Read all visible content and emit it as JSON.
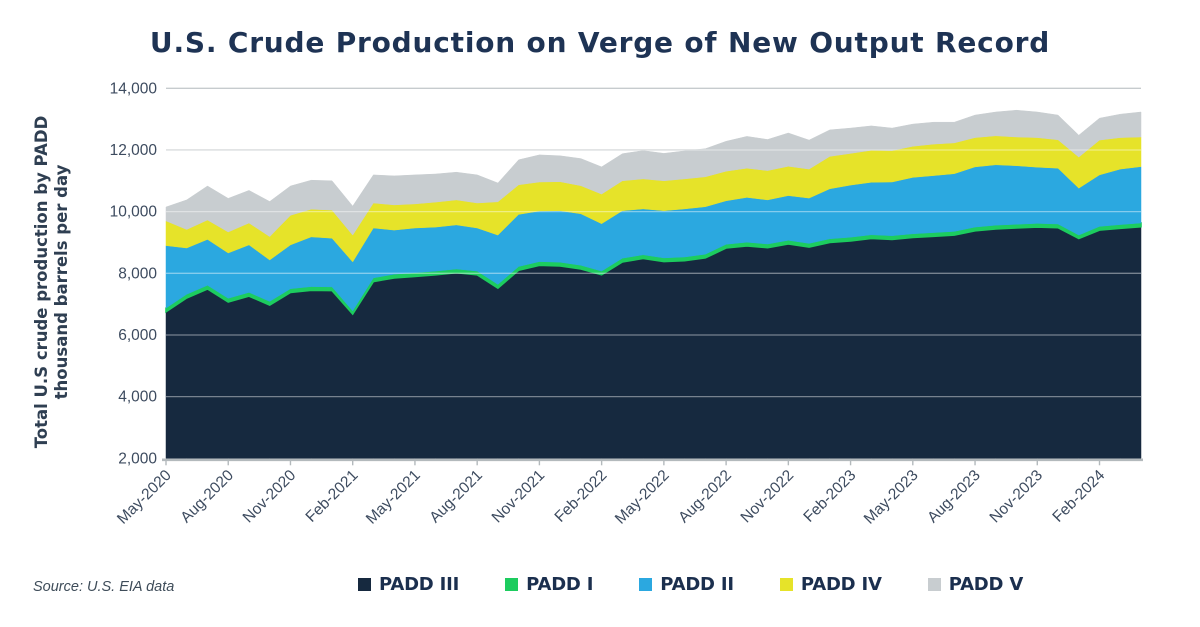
{
  "title": "U.S. Crude Production on Verge of New Output Record",
  "source_note": "Source: U.S. EIA data",
  "y_axis": {
    "label_line1": "Total U.S crude production by PADD",
    "label_line2": "thousand barrels per day",
    "tick_labels": [
      "14,000",
      "12,000",
      "10,000",
      "8,000",
      "6,000",
      "4,000",
      "2,000"
    ],
    "min": 2000,
    "max": 14000,
    "step": 2000
  },
  "x_axis": {
    "tick_labels": [
      "May-2020",
      "Aug-2020",
      "Nov-2020",
      "Feb-2021",
      "May-2021",
      "Aug-2021",
      "Nov-2021",
      "Feb-2022",
      "May-2022",
      "Aug-2022",
      "Nov-2022",
      "Feb-2023",
      "May-2023",
      "Aug-2023",
      "Nov-2023",
      "Feb-2024"
    ],
    "tick_every_n_months": 3
  },
  "legend": {
    "items": [
      {
        "label": "PADD III",
        "color": "#16293f"
      },
      {
        "label": "PADD I",
        "color": "#1dcc5f"
      },
      {
        "label": "PADD II",
        "color": "#2ba8e0"
      },
      {
        "label": "PADD IV",
        "color": "#e6e329"
      },
      {
        "label": "PADD V",
        "color": "#c8cdd0"
      }
    ]
  },
  "colors": {
    "title_text": "#1e3354",
    "axis_text": "#3d4b5f",
    "gridline": "#c6cbce",
    "axis_line": "#b3b9bc",
    "background": "#ffffff"
  },
  "chart_data": {
    "type": "area",
    "stacked": true,
    "title": "U.S. Crude Production on Verge of New Output Record",
    "ylabel": "Total U.S crude production by PADD thousand barrels per day",
    "xlabel": "",
    "ylim": [
      2000,
      14000
    ],
    "baseline": 2000,
    "grid": true,
    "legend_position": "bottom",
    "x": [
      "May-2020",
      "Jun-2020",
      "Jul-2020",
      "Aug-2020",
      "Sep-2020",
      "Oct-2020",
      "Nov-2020",
      "Dec-2020",
      "Jan-2021",
      "Feb-2021",
      "Mar-2021",
      "Apr-2021",
      "May-2021",
      "Jun-2021",
      "Jul-2021",
      "Aug-2021",
      "Sep-2021",
      "Oct-2021",
      "Nov-2021",
      "Dec-2021",
      "Jan-2022",
      "Feb-2022",
      "Mar-2022",
      "Apr-2022",
      "May-2022",
      "Jun-2022",
      "Jul-2022",
      "Aug-2022",
      "Sep-2022",
      "Oct-2022",
      "Nov-2022",
      "Dec-2022",
      "Jan-2023",
      "Feb-2023",
      "Mar-2023",
      "Apr-2023",
      "May-2023",
      "Jun-2023",
      "Jul-2023",
      "Aug-2023",
      "Sep-2023",
      "Oct-2023",
      "Nov-2023",
      "Dec-2023",
      "Jan-2024",
      "Feb-2024",
      "Mar-2024",
      "Apr-2024"
    ],
    "series": [
      {
        "name": "PADD III",
        "color": "#16293f",
        "values": [
          6750,
          7200,
          7490,
          7070,
          7260,
          6970,
          7380,
          7450,
          7440,
          6680,
          7730,
          7850,
          7900,
          7950,
          8020,
          7950,
          7520,
          8100,
          8260,
          8240,
          8140,
          7950,
          8370,
          8480,
          8380,
          8410,
          8500,
          8820,
          8890,
          8830,
          8950,
          8850,
          9000,
          9050,
          9130,
          9100,
          9160,
          9200,
          9240,
          9380,
          9440,
          9470,
          9500,
          9480,
          9130,
          9400,
          9460,
          9510
        ]
      },
      {
        "name": "PADD I",
        "color": "#1dcc5f",
        "values": [
          120,
          120,
          120,
          120,
          120,
          120,
          120,
          120,
          120,
          100,
          120,
          120,
          120,
          120,
          120,
          120,
          120,
          120,
          120,
          120,
          120,
          120,
          120,
          120,
          120,
          120,
          120,
          120,
          120,
          120,
          120,
          120,
          120,
          120,
          120,
          120,
          120,
          120,
          120,
          120,
          120,
          120,
          120,
          120,
          110,
          120,
          120,
          120
        ]
      },
      {
        "name": "PADD II",
        "color": "#2ba8e0",
        "values": [
          2030,
          1500,
          1490,
          1470,
          1540,
          1340,
          1420,
          1610,
          1580,
          1590,
          1620,
          1430,
          1450,
          1430,
          1430,
          1400,
          1600,
          1690,
          1640,
          1670,
          1670,
          1540,
          1540,
          1490,
          1530,
          1560,
          1540,
          1410,
          1450,
          1430,
          1450,
          1470,
          1620,
          1690,
          1700,
          1740,
          1830,
          1850,
          1870,
          1950,
          1960,
          1900,
          1820,
          1810,
          1520,
          1670,
          1800,
          1830
        ]
      },
      {
        "name": "PADD IV",
        "color": "#e6e329",
        "values": [
          800,
          600,
          630,
          680,
          710,
          760,
          960,
          900,
          910,
          870,
          810,
          820,
          780,
          810,
          810,
          810,
          1080,
          960,
          940,
          940,
          910,
          960,
          970,
          970,
          970,
          970,
          970,
          960,
          950,
          950,
          950,
          940,
          1050,
          1030,
          1040,
          1020,
          1010,
          1020,
          1000,
          950,
          940,
          930,
          960,
          920,
          1010,
          1130,
          1020,
          960
        ]
      },
      {
        "name": "PADD V",
        "color": "#c8cdd0",
        "values": [
          450,
          960,
          1100,
          1090,
          1060,
          1140,
          950,
          940,
          950,
          940,
          910,
          940,
          940,
          910,
          900,
          910,
          610,
          810,
          880,
          840,
          880,
          880,
          880,
          920,
          890,
          910,
          910,
          970,
          1030,
          1010,
          1080,
          940,
          860,
          820,
          790,
          730,
          720,
          710,
          670,
          730,
          770,
          870,
          830,
          800,
          710,
          710,
          760,
          810
        ]
      }
    ]
  }
}
